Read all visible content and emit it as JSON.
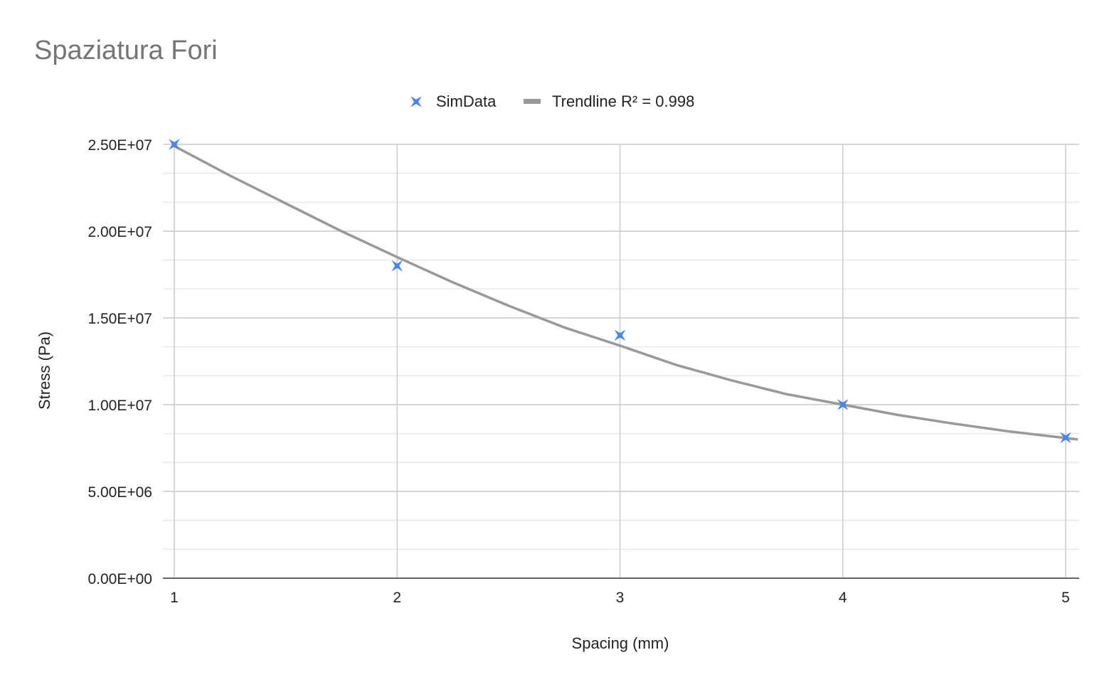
{
  "chart_data": {
    "type": "scatter",
    "title": "Spaziatura Fori",
    "xlabel": "Spacing (mm)",
    "ylabel": "Stress (Pa)",
    "xlim": [
      1,
      5
    ],
    "ylim": [
      0,
      25000000
    ],
    "x_ticks": [
      1,
      2,
      3,
      4,
      5
    ],
    "x_tick_labels": [
      "1",
      "2",
      "3",
      "4",
      "5"
    ],
    "y_ticks": [
      0,
      5000000,
      10000000,
      15000000,
      20000000,
      25000000
    ],
    "y_tick_labels": [
      "0.00E+00",
      "5.00E+06",
      "1.00E+07",
      "1.50E+07",
      "2.00E+07",
      "2.50E+07"
    ],
    "y_minor_step": 1666667,
    "grid": true,
    "legend_position": "top-center",
    "series": [
      {
        "name": "SimData",
        "kind": "points",
        "marker": "star",
        "color": "#4a86e8",
        "x": [
          1,
          2,
          3,
          4,
          5
        ],
        "y": [
          25000000,
          18000000,
          14000000,
          10000000,
          8100000
        ]
      },
      {
        "name": "Trendline R² = 0.998",
        "kind": "line",
        "color": "#999999",
        "x": [
          1,
          1.25,
          1.5,
          1.75,
          2,
          2.25,
          2.5,
          2.75,
          3,
          3.25,
          3.5,
          3.75,
          4,
          4.25,
          4.5,
          4.75,
          5.05
        ],
        "y": [
          24900000,
          23200000,
          21600000,
          20000000,
          18500000,
          17050000,
          15700000,
          14450000,
          13400000,
          12300000,
          11400000,
          10600000,
          10000000,
          9400000,
          8900000,
          8450000,
          8000000
        ]
      }
    ]
  }
}
